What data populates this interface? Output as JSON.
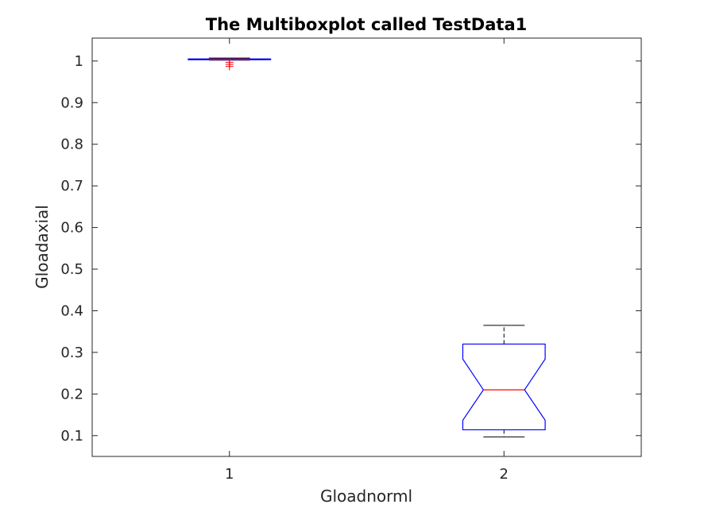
{
  "chart_data": {
    "type": "boxplot",
    "title": "The Multiboxplot called TestData1",
    "xlabel": "Gloadnorml",
    "ylabel": "Gloadaxial",
    "categories": [
      "1",
      "2"
    ],
    "ylim": [
      0.05,
      1.055
    ],
    "xlim": [
      0.5,
      2.5
    ],
    "yticks": [
      "0.1",
      "0.2",
      "0.3",
      "0.4",
      "0.5",
      "0.6",
      "0.7",
      "0.8",
      "0.9",
      "1"
    ],
    "notched": true,
    "grid": false,
    "colors": {
      "box": "#0000ff",
      "median": "#ff0000",
      "whisker": "#000000",
      "outlier": "#ff0000",
      "axes": "#262626"
    },
    "boxes": [
      {
        "category": "1",
        "whisker_low": 1.002,
        "q1": 1.003,
        "median": 1.004,
        "q3": 1.005,
        "whisker_high": 1.007,
        "notch_low": 1.0035,
        "notch_high": 1.0045,
        "outliers": [
          0.997,
          0.992,
          0.987
        ]
      },
      {
        "category": "2",
        "whisker_low": 0.097,
        "q1": 0.114,
        "median": 0.21,
        "q3": 0.32,
        "whisker_high": 0.365,
        "notch_low": 0.137,
        "notch_high": 0.284,
        "outliers": []
      }
    ]
  }
}
